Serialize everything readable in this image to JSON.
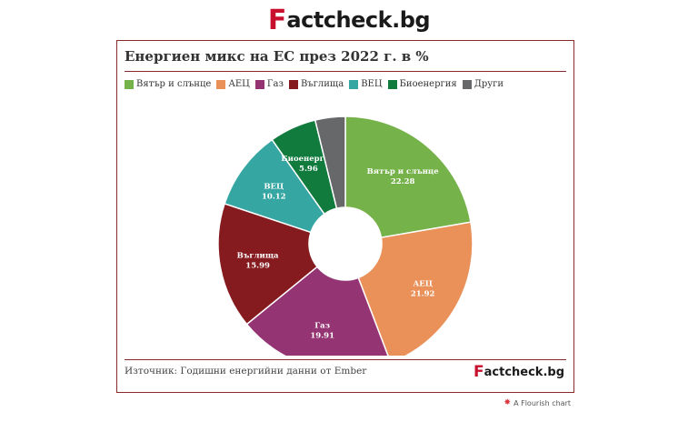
{
  "brand": {
    "first_letter": "F",
    "rest": "actcheck.bg"
  },
  "title": "Енергиен микс на ЕС през 2022 г. в %",
  "source": "Източник: Годишни енергийни данни от Ember",
  "flourish_credit": "A Flourish chart",
  "chart_data": {
    "type": "pie",
    "title": "Енергиен микс на ЕС през 2022 г. в %",
    "legend_placement": "top",
    "donut": true,
    "slices": [
      {
        "label": "Вятър и слънце",
        "value": 22.28,
        "color": "#76b24a"
      },
      {
        "label": "АЕЦ",
        "value": 21.92,
        "color": "#ea9159"
      },
      {
        "label": "Газ",
        "value": 19.91,
        "color": "#943472"
      },
      {
        "label": "Въглища",
        "value": 15.99,
        "color": "#861b1f"
      },
      {
        "label": "ВЕЦ",
        "value": 10.12,
        "color": "#36a6a2"
      },
      {
        "label": "Биоенергия",
        "value": 5.96,
        "color": "#117b3e"
      },
      {
        "label": "Други",
        "value": 3.82,
        "color": "#67686a"
      }
    ]
  }
}
